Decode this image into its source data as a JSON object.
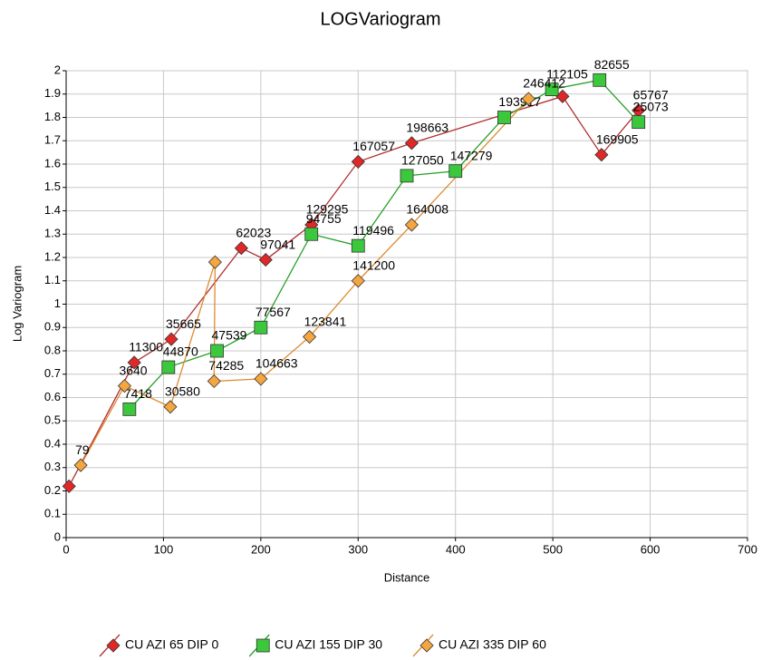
{
  "chart_data": {
    "type": "scatter-line",
    "title": "LOGVariogram",
    "x_label": "Distance",
    "y_label": "Log Variogram",
    "xlim": [
      0,
      700
    ],
    "xticks": [
      0,
      100,
      200,
      300,
      400,
      500,
      600,
      700
    ],
    "ylim": [
      0,
      2
    ],
    "yticks": [
      0,
      0.1,
      0.2,
      0.3,
      0.4,
      0.5,
      0.6,
      0.7,
      0.8,
      0.9,
      1,
      1.1,
      1.2,
      1.3,
      1.4,
      1.5,
      1.6,
      1.7,
      1.8,
      1.9,
      2
    ],
    "grid": true,
    "legend": "bottom",
    "series": [
      {
        "name": "CU AZI 65 DIP 0",
        "color": "#e02828",
        "line_color": "#b03030",
        "marker": "diamond",
        "x": [
          3,
          70,
          108,
          180,
          205,
          252,
          300,
          355,
          510,
          550,
          588
        ],
        "values": [
          0.22,
          0.75,
          0.85,
          1.24,
          1.19,
          1.34,
          1.61,
          1.69,
          1.89,
          1.64,
          1.83
        ],
        "labels": [
          null,
          11300,
          35665,
          62023,
          97041,
          129295,
          167057,
          198663,
          null,
          169905,
          65767
        ]
      },
      {
        "name": "CU AZI 155 DIP 30",
        "color": "#3cc83c",
        "line_color": "#28a028",
        "marker": "square",
        "x": [
          65,
          105,
          155,
          200,
          252,
          300,
          350,
          400,
          450,
          499,
          548,
          588
        ],
        "values": [
          0.55,
          0.73,
          0.8,
          0.9,
          1.3,
          1.25,
          1.55,
          1.57,
          1.8,
          1.92,
          1.96,
          1.78
        ],
        "labels": [
          7418,
          44870,
          47539,
          77567,
          94755,
          119496,
          127050,
          147279,
          193917,
          112105,
          82655,
          25073
        ]
      },
      {
        "name": "CU AZI 335 DIP 60",
        "color": "#f4a640",
        "line_color": "#e08a30",
        "marker": "diamond",
        "x": [
          15,
          60,
          107,
          153,
          152,
          200,
          250,
          300,
          355,
          475
        ],
        "values": [
          0.31,
          0.65,
          0.56,
          1.18,
          0.67,
          0.68,
          0.86,
          1.1,
          1.34,
          1.88
        ],
        "labels": [
          79,
          3640,
          30580,
          null,
          74285,
          104663,
          123841,
          141200,
          164008,
          246412
        ]
      }
    ]
  }
}
